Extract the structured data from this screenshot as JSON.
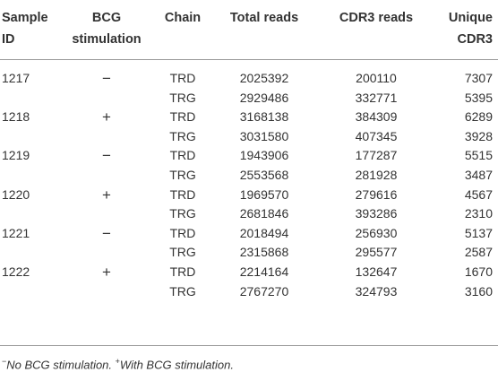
{
  "table": {
    "header": [
      "Sample ID",
      "BCG stimulation",
      "Chain",
      "Total reads",
      "CDR3 reads",
      "Unique CDR3"
    ],
    "samples": [
      {
        "id": "1217",
        "bcg": "−",
        "chains": [
          [
            "TRD",
            2025392,
            200110,
            7307
          ],
          [
            "TRG",
            2929486,
            332771,
            5395
          ]
        ]
      },
      {
        "id": "1218",
        "bcg": "+",
        "chains": [
          [
            "TRD",
            3168138,
            384309,
            6289
          ],
          [
            "TRG",
            3031580,
            407345,
            3928
          ]
        ]
      },
      {
        "id": "1219",
        "bcg": "−",
        "chains": [
          [
            "TRD",
            1943906,
            177287,
            5515
          ],
          [
            "TRG",
            2553568,
            281928,
            3487
          ]
        ]
      },
      {
        "id": "1220",
        "bcg": "+",
        "chains": [
          [
            "TRD",
            1969570,
            279616,
            4567
          ],
          [
            "TRG",
            2681846,
            393286,
            2310
          ]
        ]
      },
      {
        "id": "1221",
        "bcg": "−",
        "chains": [
          [
            "TRD",
            2018494,
            256930,
            5137
          ],
          [
            "TRG",
            2315868,
            295577,
            2587
          ]
        ]
      },
      {
        "id": "1222",
        "bcg": "+",
        "chains": [
          [
            "TRD",
            2214164,
            132647,
            1670
          ],
          [
            "TRG",
            2767270,
            324793,
            3160
          ]
        ]
      }
    ],
    "footnotes": [
      {
        "mark": "−",
        "text": "No BCG stimulation."
      },
      {
        "mark": "+",
        "text": "With BCG stimulation."
      }
    ]
  }
}
